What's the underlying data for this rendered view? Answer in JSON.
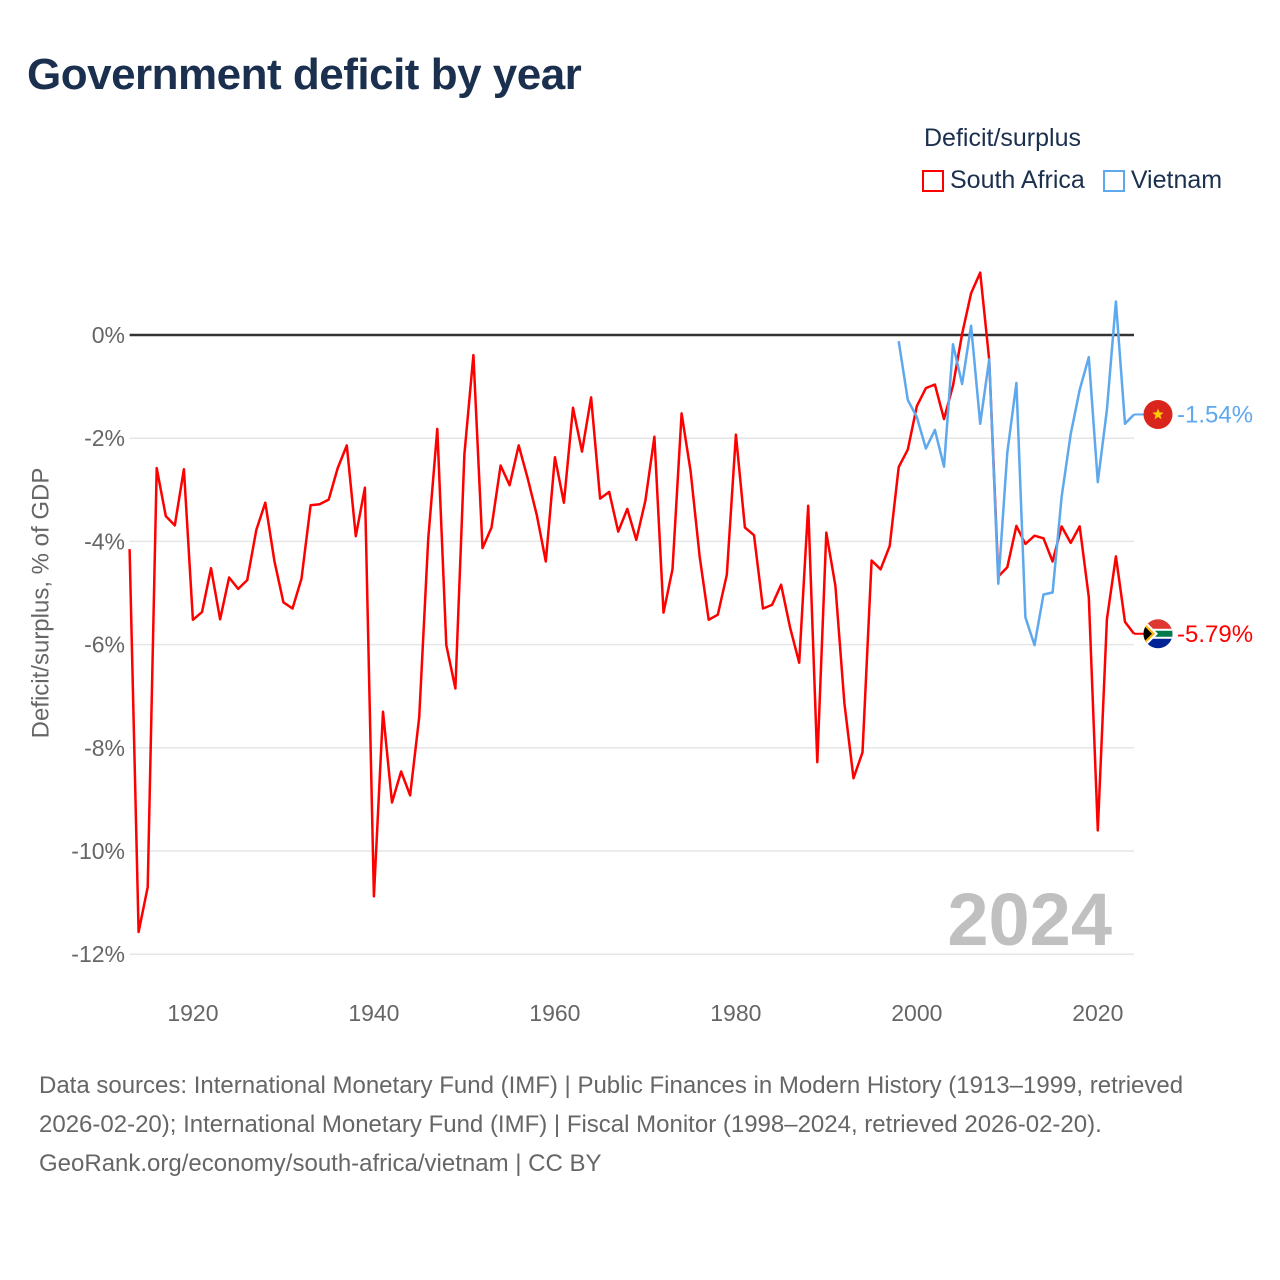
{
  "chart_data": {
    "type": "line",
    "title": "Government deficit by year",
    "xlabel": "",
    "ylabel": "Deficit/surplus, % of GDP",
    "xlim": [
      1913,
      2024
    ],
    "ylim": [
      -12,
      1.5
    ],
    "x_ticks": [
      1920,
      1940,
      1960,
      1980,
      2000,
      2020
    ],
    "x_tick_labels": [
      "1920",
      "1940",
      "1960",
      "1980",
      "2000",
      "2020"
    ],
    "y_ticks": [
      0,
      -2,
      -4,
      -6,
      -8,
      -10,
      -12
    ],
    "y_tick_labels": [
      "0%",
      "-2%",
      "-4%",
      "-6%",
      "-8%",
      "-10%",
      "-12%"
    ],
    "grid": true,
    "legend_title": "Deficit/surplus",
    "legend_position": "top-right",
    "year_watermark": "2024",
    "series": [
      {
        "name": "South Africa",
        "color": "#ff0000",
        "end_label": "-5.79%",
        "flag": "south-africa",
        "start_year": 1913,
        "values": [
          -4.15,
          -11.57,
          -10.7,
          -2.58,
          -3.51,
          -3.69,
          -2.6,
          -5.52,
          -5.37,
          -4.52,
          -5.51,
          -4.7,
          -4.92,
          -4.75,
          -3.78,
          -3.25,
          -4.38,
          -5.18,
          -5.3,
          -4.72,
          -3.3,
          -3.28,
          -3.19,
          -2.58,
          -2.14,
          -3.9,
          -2.96,
          -10.88,
          -7.3,
          -9.06,
          -8.46,
          -8.92,
          -7.41,
          -3.96,
          -1.82,
          -6.01,
          -6.85,
          -2.31,
          -0.39,
          -4.13,
          -3.73,
          -2.53,
          -2.91,
          -2.14,
          -2.78,
          -3.49,
          -4.39,
          -2.37,
          -3.25,
          -1.41,
          -2.26,
          -1.21,
          -3.17,
          -3.04,
          -3.81,
          -3.37,
          -3.97,
          -3.21,
          -1.97,
          -5.38,
          -4.54,
          -1.52,
          -2.64,
          -4.3,
          -5.52,
          -5.42,
          -4.65,
          -1.93,
          -3.73,
          -3.88,
          -5.3,
          -5.23,
          -4.84,
          -5.68,
          -6.35,
          -3.31,
          -8.28,
          -3.83,
          -4.86,
          -7.14,
          -8.59,
          -8.09,
          -4.37,
          -4.54,
          -4.09,
          -2.56,
          -2.22,
          -1.38,
          -1.03,
          -0.96,
          -1.63,
          -0.98,
          0.02,
          0.81,
          1.21,
          -0.48,
          -4.68,
          -4.5,
          -3.7,
          -4.05,
          -3.89,
          -3.94,
          -4.39,
          -3.71,
          -4.03,
          -3.71,
          -5.08,
          -9.6,
          -5.51,
          -4.29,
          -5.56,
          -5.79
        ]
      },
      {
        "name": "Vietnam",
        "color": "#5ea8ee",
        "end_label": "-1.54%",
        "flag": "vietnam",
        "start_year": 1998,
        "values": [
          -0.12,
          -1.26,
          -1.59,
          -2.2,
          -1.84,
          -2.55,
          -0.18,
          -0.95,
          0.18,
          -1.72,
          -0.47,
          -4.82,
          -2.28,
          -0.93,
          -5.47,
          -6.01,
          -5.03,
          -4.99,
          -3.14,
          -1.92,
          -1.06,
          -0.43,
          -2.85,
          -1.45,
          0.65,
          -1.72,
          -1.54
        ]
      }
    ]
  },
  "footer": {
    "sources": "Data sources: International Monetary Fund (IMF) | Public Finances in Modern History (1913–1999, retrieved 2026-02-20); International Monetary Fund (IMF) | Fiscal Monitor (1998–2024, retrieved 2026-02-20).",
    "credit": "GeoRank.org/economy/south-africa/vietnam | CC BY"
  }
}
